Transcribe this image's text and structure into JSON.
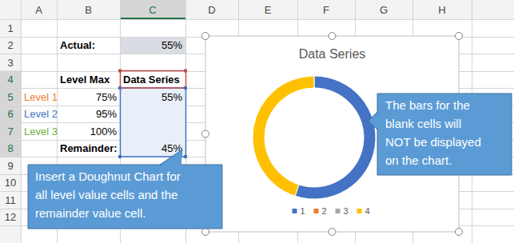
{
  "chart_data": {
    "type": "doughnut",
    "title": "Data Series",
    "categories": [
      "1",
      "2",
      "3",
      "4"
    ],
    "values": [
      55,
      null,
      null,
      45
    ],
    "colors": [
      "#4472c4",
      "#ed7d31",
      "#a5a5a5",
      "#ffc000"
    ],
    "legend": "bottom"
  },
  "sheet": {
    "columns": [
      "A",
      "B",
      "C",
      "D",
      "E",
      "F",
      "G",
      "H"
    ],
    "rows": [
      1,
      2,
      3,
      4,
      5,
      6,
      7,
      8,
      9,
      10,
      11,
      12
    ],
    "cells": [
      [
        null,
        null,
        null
      ],
      [
        null,
        "Actual:",
        "55%"
      ],
      [
        null,
        null,
        null
      ],
      [
        null,
        "Level Max",
        "Data Series"
      ],
      [
        "Level 1",
        "75%",
        "55%"
      ],
      [
        "Level 2",
        "95%",
        null
      ],
      [
        "Level 3",
        "100%",
        null
      ],
      [
        null,
        "Remainder:",
        "45%"
      ],
      [
        null,
        null,
        null
      ],
      [
        null,
        null,
        null
      ],
      [
        null,
        null,
        null
      ],
      [
        null,
        null,
        null
      ]
    ]
  },
  "callouts": [
    {
      "lines": [
        "Insert a Doughnut Chart for",
        "all level value cells and the",
        "remainder value cell."
      ]
    },
    {
      "lines": [
        "The bars for the",
        "blank cells will",
        "NOT be displayed",
        "on the chart."
      ]
    }
  ]
}
